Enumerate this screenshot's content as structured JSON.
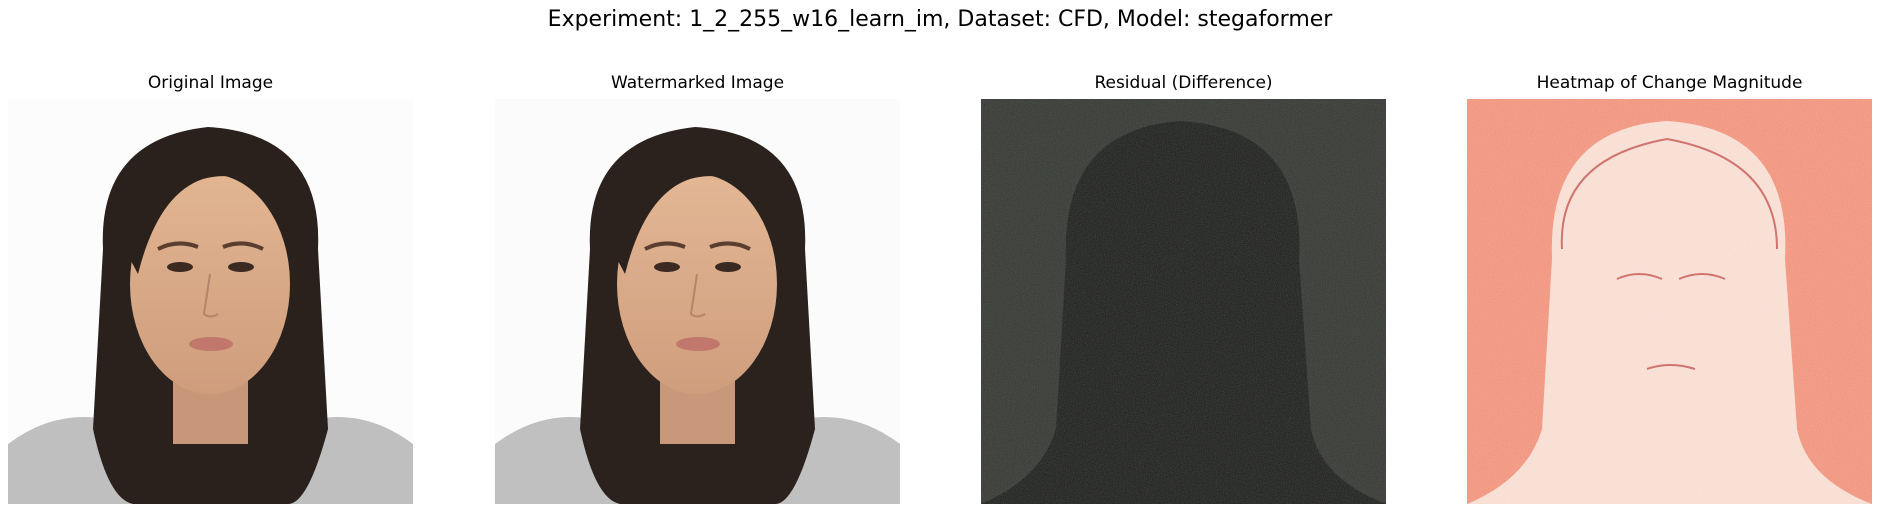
{
  "figure": {
    "title": "Experiment: 1_2_255_w16_learn_im, Dataset: CFD, Model: stegaformer"
  },
  "panels": [
    {
      "title": "Original Image",
      "image": "portrait-photo"
    },
    {
      "title": "Watermarked Image",
      "image": "portrait-photo"
    },
    {
      "title": "Residual (Difference)",
      "image": "residual-noise-map"
    },
    {
      "title": "Heatmap of Change Magnitude",
      "image": "change-magnitude-heatmap"
    }
  ],
  "colors": {
    "residual_background": "#363a34",
    "residual_silhouette": "#1b1d1a",
    "heatmap_background": "#f39078",
    "heatmap_silhouette": "#fbe3d8",
    "heatmap_hotspot": "#b01c1c"
  }
}
